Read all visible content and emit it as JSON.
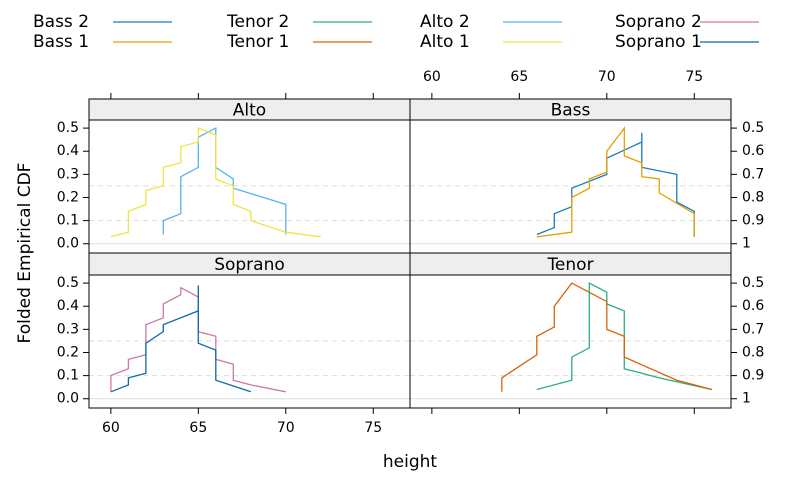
{
  "chart_data": [
    {
      "type": "line",
      "title": "Bass",
      "series": [
        {
          "name": "Bass 2",
          "color": "#1a7cc1",
          "x": [
            66,
            67,
            67,
            68,
            68,
            70,
            70,
            72,
            72,
            72,
            74,
            74,
            75,
            75
          ],
          "values": [
            0.04,
            0.07,
            0.13,
            0.16,
            0.24,
            0.3,
            0.37,
            0.44,
            0.48,
            0.33,
            0.3,
            0.18,
            0.14,
            0.03
          ]
        },
        {
          "name": "Bass 1",
          "color": "#e6a000",
          "x": [
            66,
            68,
            68,
            69,
            69,
            70,
            70,
            71,
            71,
            72,
            72,
            73,
            73,
            75,
            75
          ],
          "values": [
            0.03,
            0.05,
            0.2,
            0.24,
            0.28,
            0.31,
            0.4,
            0.5,
            0.38,
            0.35,
            0.29,
            0.28,
            0.22,
            0.13,
            0.03
          ]
        }
      ]
    },
    {
      "type": "line",
      "title": "Tenor",
      "series": [
        {
          "name": "Tenor 2",
          "color": "#2aae80",
          "x": [
            66,
            68,
            68,
            69,
            69,
            70,
            70,
            71,
            71,
            72,
            73,
            76
          ],
          "values": [
            0.04,
            0.08,
            0.18,
            0.22,
            0.5,
            0.46,
            0.41,
            0.38,
            0.13,
            0.11,
            0.09,
            0.04
          ]
        },
        {
          "name": "Tenor 1",
          "color": "#d9620b",
          "x": [
            64,
            64,
            66,
            66,
            67,
            67,
            68,
            70,
            70,
            71,
            71,
            74,
            76
          ],
          "values": [
            0.03,
            0.09,
            0.19,
            0.27,
            0.31,
            0.4,
            0.5,
            0.42,
            0.3,
            0.27,
            0.18,
            0.08,
            0.04
          ]
        }
      ]
    },
    {
      "type": "line",
      "title": "Alto",
      "series": [
        {
          "name": "Alto 2",
          "color": "#56b4e9",
          "x": [
            63,
            63,
            64,
            64,
            65,
            65,
            66,
            66,
            67,
            67,
            70,
            70
          ],
          "values": [
            0.04,
            0.1,
            0.13,
            0.29,
            0.33,
            0.46,
            0.5,
            0.33,
            0.28,
            0.24,
            0.17,
            0.04
          ]
        },
        {
          "name": "Alto 1",
          "color": "#f0e442",
          "x": [
            60,
            61,
            61,
            62,
            62,
            63,
            63,
            64,
            64,
            65,
            65,
            66,
            66,
            67,
            67,
            68,
            68,
            70,
            72
          ],
          "values": [
            0.03,
            0.05,
            0.14,
            0.17,
            0.23,
            0.25,
            0.33,
            0.35,
            0.42,
            0.44,
            0.5,
            0.47,
            0.28,
            0.25,
            0.17,
            0.14,
            0.1,
            0.05,
            0.03
          ]
        }
      ]
    },
    {
      "type": "line",
      "title": "Soprano",
      "series": [
        {
          "name": "Soprano 2",
          "color": "#cc79a7",
          "x": [
            60,
            60,
            61,
            61,
            62,
            62,
            63,
            63,
            64,
            64,
            65,
            65,
            66,
            66,
            67,
            67,
            68,
            70
          ],
          "values": [
            0.03,
            0.1,
            0.13,
            0.17,
            0.19,
            0.32,
            0.35,
            0.41,
            0.45,
            0.48,
            0.44,
            0.29,
            0.27,
            0.17,
            0.15,
            0.08,
            0.06,
            0.03
          ]
        },
        {
          "name": "Soprano 1",
          "color": "#0a6aa8",
          "x": [
            60,
            61,
            61,
            62,
            62,
            63,
            63,
            65,
            65,
            65,
            66,
            66,
            68
          ],
          "values": [
            0.03,
            0.06,
            0.09,
            0.11,
            0.24,
            0.29,
            0.32,
            0.38,
            0.49,
            0.24,
            0.21,
            0.08,
            0.03
          ]
        }
      ]
    }
  ],
  "axes": {
    "xlabel": "height",
    "ylabel": "Folded Empirical CDF",
    "xlim": [
      58.75,
      77.1
    ],
    "xticks": [
      60,
      65,
      70,
      75
    ],
    "ylim": [
      -0.04,
      0.535
    ],
    "yticks": [
      {
        "value": 0,
        "label": "0.0"
      },
      0.1,
      0.2,
      0.3,
      0.4,
      0.5
    ],
    "y2ticks": [
      0.5,
      {
        "value": 0.4,
        "label": "0.6"
      },
      {
        "value": 0.3,
        "label": "0.7"
      },
      {
        "value": 0.2,
        "label": "0.8"
      },
      {
        "value": 0.1,
        "label": "0.9"
      },
      {
        "value": 0,
        "label": "1"
      }
    ],
    "reference_lines": [
      {
        "value": 0,
        "dashed": false
      },
      {
        "value": 0.1,
        "dashed": true
      },
      {
        "value": 0.25,
        "dashed": true
      }
    ]
  }
}
